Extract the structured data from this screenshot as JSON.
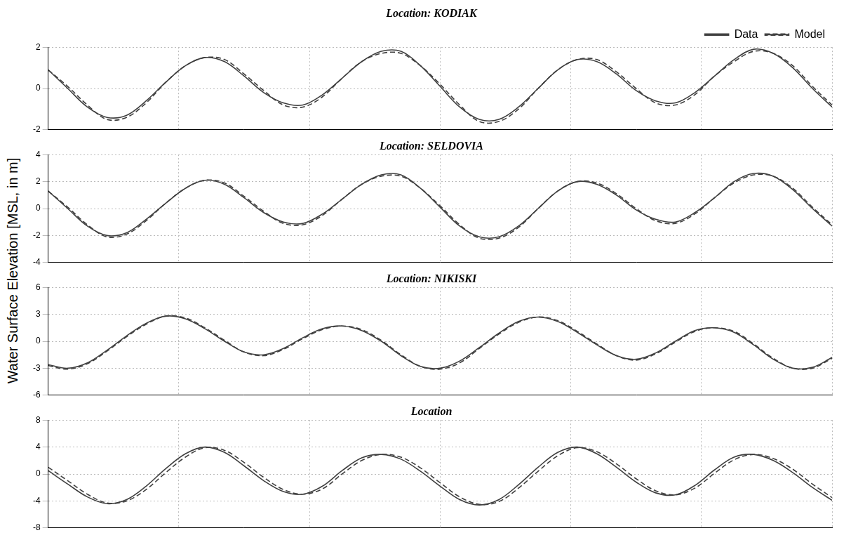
{
  "y_label": "Water Surface Elevation [MSL, in m]",
  "chart_data": [
    {
      "type": "line",
      "title": "Location: KODIAK",
      "legend": "top",
      "grid": true,
      "tick_labels": "y",
      "x": [
        0,
        1.5,
        3,
        4.5,
        6,
        7.5,
        9,
        10.5,
        12,
        13.5,
        15,
        16.5,
        18,
        19.5,
        21,
        22.5,
        24,
        25.5,
        27,
        28.5,
        30,
        31.5,
        33,
        34.5,
        36,
        37.5,
        39,
        40.5,
        42,
        43.5,
        45,
        46.5,
        48,
        49.5,
        51,
        52.5,
        54,
        55.5,
        57,
        58.5,
        60
      ],
      "xlim": [
        0,
        60
      ],
      "xticks": [
        0,
        10,
        20,
        30,
        40,
        50,
        60
      ],
      "ylim": [
        -2,
        2
      ],
      "yticks": [
        -2,
        0,
        2
      ],
      "series": [
        {
          "name": "Data",
          "color": "#404040",
          "line_style": "solid",
          "values": [
            0.9,
            0.0,
            -0.9,
            -1.4,
            -1.3,
            -0.6,
            0.3,
            1.1,
            1.5,
            1.3,
            0.6,
            -0.2,
            -0.7,
            -0.8,
            -0.3,
            0.5,
            1.3,
            1.8,
            1.8,
            1.1,
            0.1,
            -0.9,
            -1.5,
            -1.5,
            -0.9,
            0.0,
            0.9,
            1.4,
            1.3,
            0.7,
            -0.1,
            -0.6,
            -0.7,
            -0.2,
            0.6,
            1.4,
            1.9,
            1.7,
            1.0,
            0.0,
            -0.9
          ]
        },
        {
          "name": "Model",
          "color": "#404040",
          "line_style": "dashed",
          "values": [
            0.9,
            0.1,
            -0.8,
            -1.5,
            -1.4,
            -0.7,
            0.3,
            1.1,
            1.5,
            1.4,
            0.7,
            -0.1,
            -0.8,
            -0.9,
            -0.4,
            0.5,
            1.3,
            1.7,
            1.7,
            1.1,
            0.2,
            -0.8,
            -1.6,
            -1.6,
            -1.0,
            0.0,
            0.9,
            1.4,
            1.4,
            0.8,
            0.0,
            -0.7,
            -0.8,
            -0.3,
            0.6,
            1.3,
            1.8,
            1.7,
            1.1,
            0.1,
            -0.8
          ]
        }
      ]
    },
    {
      "type": "line",
      "title": "Location: SELDOVIA",
      "grid": true,
      "tick_labels": "y",
      "x": [
        0,
        1.5,
        3,
        4.5,
        6,
        7.5,
        9,
        10.5,
        12,
        13.5,
        15,
        16.5,
        18,
        19.5,
        21,
        22.5,
        24,
        25.5,
        27,
        28.5,
        30,
        31.5,
        33,
        34.5,
        36,
        37.5,
        39,
        40.5,
        42,
        43.5,
        45,
        46.5,
        48,
        49.5,
        51,
        52.5,
        54,
        55.5,
        57,
        58.5,
        60
      ],
      "xlim": [
        0,
        60
      ],
      "xticks": [
        0,
        10,
        20,
        30,
        40,
        50,
        60
      ],
      "ylim": [
        -4,
        4
      ],
      "yticks": [
        -4,
        -2,
        0,
        2,
        4
      ],
      "series": [
        {
          "name": "Data",
          "color": "#404040",
          "line_style": "solid",
          "values": [
            1.3,
            0.0,
            -1.3,
            -2.0,
            -1.8,
            -0.8,
            0.4,
            1.5,
            2.1,
            1.8,
            0.8,
            -0.3,
            -1.0,
            -1.1,
            -0.4,
            0.7,
            1.8,
            2.5,
            2.5,
            1.5,
            0.1,
            -1.3,
            -2.1,
            -2.1,
            -1.3,
            0.0,
            1.3,
            2.0,
            1.8,
            1.0,
            -0.1,
            -0.8,
            -1.0,
            -0.3,
            0.8,
            2.0,
            2.6,
            2.4,
            1.4,
            0.0,
            -1.3
          ]
        },
        {
          "name": "Model",
          "color": "#404040",
          "line_style": "dashed",
          "values": [
            1.3,
            0.1,
            -1.2,
            -2.1,
            -1.9,
            -0.9,
            0.4,
            1.5,
            2.1,
            1.9,
            0.9,
            -0.2,
            -1.1,
            -1.2,
            -0.5,
            0.7,
            1.8,
            2.4,
            2.4,
            1.5,
            0.2,
            -1.2,
            -2.2,
            -2.2,
            -1.4,
            0.0,
            1.3,
            2.0,
            1.9,
            1.1,
            0.0,
            -0.9,
            -1.1,
            -0.4,
            0.8,
            1.9,
            2.5,
            2.4,
            1.5,
            0.1,
            -1.2
          ]
        }
      ]
    },
    {
      "type": "line",
      "title": "Location: NIKISKI",
      "grid": true,
      "tick_labels": "y",
      "x": [
        0,
        1.5,
        3,
        4.5,
        6,
        7.5,
        9,
        10.5,
        12,
        13.5,
        15,
        16.5,
        18,
        19.5,
        21,
        22.5,
        24,
        25.5,
        27,
        28.5,
        30,
        31.5,
        33,
        34.5,
        36,
        37.5,
        39,
        40.5,
        42,
        43.5,
        45,
        46.5,
        48,
        49.5,
        51,
        52.5,
        54,
        55.5,
        57,
        58.5,
        60
      ],
      "xlim": [
        0,
        60
      ],
      "xticks": [
        0,
        10,
        20,
        30,
        40,
        50,
        60
      ],
      "ylim": [
        -6,
        6
      ],
      "yticks": [
        -6,
        -3,
        0,
        3,
        6
      ],
      "series": [
        {
          "name": "Data",
          "color": "#404040",
          "line_style": "solid",
          "values": [
            -2.6,
            -3.0,
            -2.4,
            -1.0,
            0.6,
            2.0,
            2.8,
            2.5,
            1.4,
            0.0,
            -1.2,
            -1.5,
            -0.8,
            0.4,
            1.4,
            1.7,
            1.2,
            0.0,
            -1.6,
            -2.8,
            -3.0,
            -2.2,
            -0.7,
            0.9,
            2.2,
            2.7,
            2.2,
            1.0,
            -0.4,
            -1.6,
            -2.0,
            -1.3,
            0.0,
            1.2,
            1.5,
            1.0,
            -0.4,
            -2.0,
            -3.0,
            -2.9,
            -1.8
          ]
        },
        {
          "name": "Model",
          "color": "#404040",
          "line_style": "dashed",
          "values": [
            -2.7,
            -3.1,
            -2.5,
            -1.1,
            0.5,
            1.9,
            2.8,
            2.6,
            1.5,
            0.1,
            -1.2,
            -1.6,
            -0.9,
            0.3,
            1.3,
            1.7,
            1.3,
            0.1,
            -1.5,
            -2.8,
            -3.1,
            -2.4,
            -0.8,
            0.8,
            2.1,
            2.7,
            2.3,
            1.1,
            -0.3,
            -1.6,
            -2.1,
            -1.4,
            -0.1,
            1.1,
            1.5,
            1.1,
            -0.3,
            -1.9,
            -3.0,
            -3.0,
            -1.9
          ]
        }
      ]
    },
    {
      "type": "line",
      "title": "Location",
      "grid": true,
      "tick_labels": "y",
      "x": [
        0,
        1.5,
        3,
        4.5,
        6,
        7.5,
        9,
        10.5,
        12,
        13.5,
        15,
        16.5,
        18,
        19.5,
        21,
        22.5,
        24,
        25.5,
        27,
        28.5,
        30,
        31.5,
        33,
        34.5,
        36,
        37.5,
        39,
        40.5,
        42,
        43.5,
        45,
        46.5,
        48,
        49.5,
        51,
        52.5,
        54,
        55.5,
        57,
        58.5,
        60
      ],
      "xlim": [
        0,
        60
      ],
      "xticks": [
        0,
        10,
        20,
        30,
        40,
        50,
        60
      ],
      "ylim": [
        -8,
        8
      ],
      "yticks": [
        -8,
        -4,
        0,
        4,
        8
      ],
      "series": [
        {
          "name": "Data",
          "color": "#404040",
          "line_style": "solid",
          "values": [
            0.5,
            -1.5,
            -3.4,
            -4.4,
            -3.8,
            -1.8,
            0.8,
            3.0,
            4.0,
            3.2,
            1.2,
            -1.0,
            -2.6,
            -3.0,
            -1.8,
            0.5,
            2.4,
            2.9,
            2.2,
            0.4,
            -1.8,
            -3.8,
            -4.6,
            -3.8,
            -1.6,
            1.0,
            3.2,
            4.0,
            3.0,
            1.0,
            -1.2,
            -2.8,
            -3.1,
            -1.7,
            0.6,
            2.5,
            2.9,
            2.0,
            0.2,
            -2.0,
            -3.9
          ]
        },
        {
          "name": "Model",
          "color": "#404040",
          "line_style": "dashed",
          "values": [
            1.0,
            -1.0,
            -3.0,
            -4.3,
            -4.0,
            -2.3,
            0.2,
            2.5,
            3.9,
            3.5,
            1.7,
            -0.5,
            -2.3,
            -3.0,
            -2.2,
            0.0,
            2.0,
            2.9,
            2.5,
            0.9,
            -1.3,
            -3.4,
            -4.5,
            -4.1,
            -2.1,
            0.4,
            2.7,
            3.9,
            3.3,
            1.5,
            -0.7,
            -2.5,
            -3.1,
            -2.1,
            0.1,
            2.1,
            2.9,
            2.3,
            0.7,
            -1.5,
            -3.5
          ]
        }
      ]
    }
  ]
}
